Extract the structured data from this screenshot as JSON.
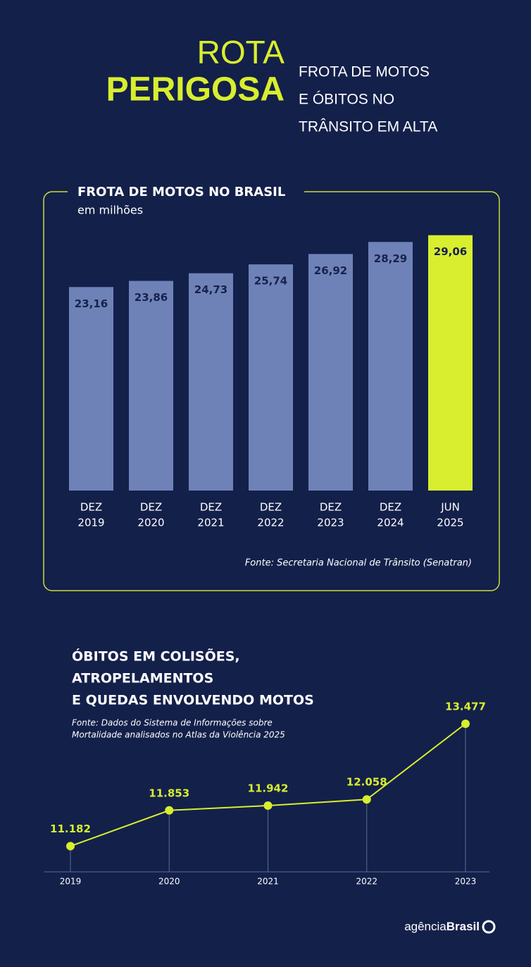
{
  "header": {
    "title": [
      "ROTA",
      "PERIGOSA"
    ],
    "subtitle": [
      "FROTA DE MOTOS",
      "E ÓBITOS NO",
      "TRÂNSITO EM ALTA"
    ]
  },
  "chart_data": [
    {
      "type": "bar",
      "title": "FROTA DE MOTOS NO BRASIL",
      "subtitle": "em milhões",
      "categories": [
        [
          "DEZ",
          "2019"
        ],
        [
          "DEZ",
          "2020"
        ],
        [
          "DEZ",
          "2021"
        ],
        [
          "DEZ",
          "2022"
        ],
        [
          "DEZ",
          "2023"
        ],
        [
          "DEZ",
          "2024"
        ],
        [
          "JUN",
          "2025"
        ]
      ],
      "values": [
        23.16,
        23.86,
        24.73,
        25.74,
        26.92,
        28.29,
        29.06
      ],
      "value_labels": [
        "23,16",
        "23,86",
        "24,73",
        "25,74",
        "26,92",
        "28,29",
        "29,06"
      ],
      "colors": [
        "#6f82b7",
        "#6f82b7",
        "#6f82b7",
        "#6f82b7",
        "#6f82b7",
        "#6f82b7",
        "#d8ee2e"
      ],
      "ylim": [
        0,
        30
      ],
      "source": "Fonte:  Secretaria Nacional de Trânsito (Senatran)"
    },
    {
      "type": "line",
      "title": [
        "ÓBITOS EM COLISÕES,",
        "ATROPELAMENTOS",
        "E QUEDAS ENVOLVENDO MOTOS"
      ],
      "source": [
        "Fonte:  Dados do Sistema de Informações sobre",
        "Mortalidade analisados no Atlas da Violência 2025"
      ],
      "categories": [
        "2019",
        "2020",
        "2021",
        "2022",
        "2023"
      ],
      "values": [
        11182,
        11853,
        11942,
        12058,
        13477
      ],
      "value_labels": [
        "11.182",
        "11.853",
        "11.942",
        "12.058",
        "13.477"
      ],
      "color": "#d8ee2e",
      "ylim": [
        10700,
        13700
      ]
    }
  ],
  "footer": {
    "logo": [
      "agência",
      "Brasil"
    ]
  }
}
